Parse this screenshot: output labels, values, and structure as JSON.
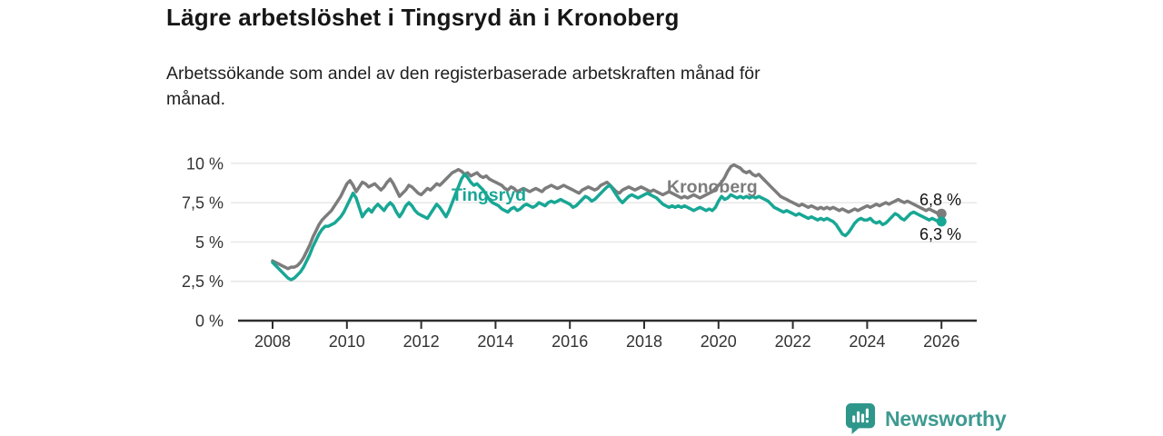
{
  "header": {
    "title": "Lägre arbetslöshet i Tingsryd än i Kronoberg",
    "subtitle": "Arbetssökande som andel av den registerbaserade arbetskraften månad för månad."
  },
  "chart_data": {
    "type": "line",
    "title": "Lägre arbetslöshet i Tingsryd än i Kronoberg",
    "x_unit": "month",
    "x_start": "2008-01",
    "x_end": "2026-01",
    "ylim": [
      0,
      10.6
    ],
    "grid": "horizontal",
    "yticks": [
      {
        "value": 0,
        "label": "0 %"
      },
      {
        "value": 2.5,
        "label": "2,5 %"
      },
      {
        "value": 5,
        "label": "5 %"
      },
      {
        "value": 7.5,
        "label": "7,5 %"
      },
      {
        "value": 10,
        "label": "10 %"
      }
    ],
    "xticks": [
      {
        "year": 2008,
        "label": "2008"
      },
      {
        "year": 2010,
        "label": "2010"
      },
      {
        "year": 2012,
        "label": "2012"
      },
      {
        "year": 2014,
        "label": "2014"
      },
      {
        "year": 2016,
        "label": "2016"
      },
      {
        "year": 2018,
        "label": "2018"
      },
      {
        "year": 2020,
        "label": "2020"
      },
      {
        "year": 2022,
        "label": "2022"
      },
      {
        "year": 2024,
        "label": "2024"
      },
      {
        "year": 2026,
        "label": "2026"
      }
    ],
    "series": [
      {
        "name": "Kronoberg",
        "color": "#7c7c7c",
        "end_value": 6.8,
        "end_label": "6,8 %",
        "values": [
          3.8,
          3.7,
          3.6,
          3.5,
          3.4,
          3.3,
          3.4,
          3.4,
          3.5,
          3.7,
          4.0,
          4.4,
          4.8,
          5.3,
          5.7,
          6.1,
          6.4,
          6.6,
          6.8,
          7.0,
          7.3,
          7.6,
          7.9,
          8.3,
          8.7,
          8.9,
          8.6,
          8.2,
          8.5,
          8.8,
          8.7,
          8.5,
          8.6,
          8.7,
          8.5,
          8.3,
          8.5,
          8.8,
          9.0,
          8.7,
          8.3,
          7.9,
          8.1,
          8.3,
          8.6,
          8.5,
          8.3,
          8.1,
          8.0,
          8.2,
          8.4,
          8.3,
          8.5,
          8.7,
          8.6,
          8.8,
          9.0,
          9.2,
          9.4,
          9.5,
          9.6,
          9.5,
          9.3,
          9.4,
          9.2,
          9.3,
          9.4,
          9.2,
          9.1,
          9.2,
          9.0,
          8.9,
          8.8,
          8.7,
          8.6,
          8.4,
          8.3,
          8.5,
          8.4,
          8.2,
          8.3,
          8.4,
          8.3,
          8.2,
          8.3,
          8.4,
          8.3,
          8.2,
          8.4,
          8.5,
          8.6,
          8.5,
          8.4,
          8.5,
          8.6,
          8.5,
          8.4,
          8.3,
          8.2,
          8.1,
          8.3,
          8.4,
          8.5,
          8.4,
          8.3,
          8.4,
          8.6,
          8.7,
          8.8,
          8.6,
          8.4,
          8.2,
          8.1,
          8.3,
          8.4,
          8.5,
          8.4,
          8.3,
          8.4,
          8.5,
          8.4,
          8.3,
          8.2,
          8.3,
          8.2,
          8.1,
          8.0,
          8.1,
          8.2,
          8.1,
          8.0,
          7.9,
          7.8,
          7.9,
          7.8,
          7.9,
          8.0,
          7.9,
          7.8,
          7.9,
          8.0,
          8.1,
          8.2,
          8.4,
          8.6,
          8.8,
          9.1,
          9.5,
          9.8,
          9.9,
          9.8,
          9.7,
          9.5,
          9.4,
          9.5,
          9.3,
          9.2,
          9.3,
          9.1,
          8.9,
          8.7,
          8.5,
          8.3,
          8.1,
          7.9,
          7.8,
          7.7,
          7.6,
          7.5,
          7.4,
          7.3,
          7.4,
          7.3,
          7.2,
          7.3,
          7.2,
          7.1,
          7.2,
          7.1,
          7.2,
          7.1,
          7.2,
          7.1,
          7.0,
          7.1,
          7.0,
          6.9,
          7.0,
          7.1,
          7.0,
          7.1,
          7.2,
          7.3,
          7.2,
          7.3,
          7.4,
          7.3,
          7.4,
          7.5,
          7.4,
          7.5,
          7.6,
          7.7,
          7.6,
          7.5,
          7.6,
          7.5,
          7.4,
          7.3,
          7.2,
          7.1,
          7.0,
          7.1,
          7.0,
          6.9,
          6.8,
          6.8
        ]
      },
      {
        "name": "Tingsryd",
        "color": "#18a795",
        "end_value": 6.3,
        "end_label": "6,3 %",
        "values": [
          3.7,
          3.5,
          3.3,
          3.1,
          2.9,
          2.7,
          2.6,
          2.7,
          2.9,
          3.1,
          3.4,
          3.8,
          4.2,
          4.7,
          5.1,
          5.5,
          5.8,
          6.0,
          6.0,
          6.1,
          6.2,
          6.4,
          6.6,
          6.9,
          7.3,
          7.7,
          8.1,
          7.8,
          7.2,
          6.6,
          6.9,
          7.1,
          6.9,
          7.2,
          7.4,
          7.2,
          7.0,
          7.3,
          7.5,
          7.3,
          6.9,
          6.6,
          6.9,
          7.3,
          7.5,
          7.3,
          7.0,
          6.8,
          6.7,
          6.6,
          6.5,
          6.8,
          7.1,
          7.4,
          7.2,
          6.9,
          6.6,
          7.0,
          7.5,
          8.0,
          8.5,
          9.0,
          9.3,
          9.1,
          8.8,
          8.6,
          8.7,
          8.5,
          8.3,
          8.0,
          7.7,
          7.5,
          7.4,
          7.3,
          7.1,
          7.0,
          6.9,
          7.1,
          7.2,
          7.0,
          7.1,
          7.3,
          7.4,
          7.3,
          7.2,
          7.3,
          7.5,
          7.4,
          7.3,
          7.5,
          7.6,
          7.5,
          7.6,
          7.7,
          7.6,
          7.5,
          7.4,
          7.2,
          7.3,
          7.5,
          7.7,
          7.9,
          7.8,
          7.6,
          7.7,
          7.9,
          8.1,
          8.3,
          8.5,
          8.6,
          8.3,
          8.0,
          7.7,
          7.5,
          7.7,
          7.9,
          8.0,
          7.9,
          7.8,
          7.9,
          8.0,
          8.1,
          8.0,
          7.9,
          7.8,
          7.6,
          7.4,
          7.3,
          7.2,
          7.3,
          7.2,
          7.3,
          7.2,
          7.3,
          7.2,
          7.1,
          7.0,
          7.1,
          7.2,
          7.1,
          7.0,
          7.1,
          7.0,
          7.2,
          7.6,
          7.9,
          7.7,
          7.8,
          8.0,
          7.9,
          7.8,
          7.9,
          7.8,
          7.9,
          7.8,
          7.9,
          7.8,
          7.9,
          7.8,
          7.7,
          7.6,
          7.4,
          7.2,
          7.1,
          7.0,
          6.9,
          7.0,
          6.9,
          6.8,
          6.7,
          6.8,
          6.7,
          6.6,
          6.5,
          6.6,
          6.5,
          6.4,
          6.5,
          6.4,
          6.5,
          6.4,
          6.3,
          6.1,
          5.8,
          5.5,
          5.4,
          5.6,
          5.9,
          6.2,
          6.4,
          6.5,
          6.4,
          6.4,
          6.5,
          6.3,
          6.2,
          6.3,
          6.1,
          6.2,
          6.4,
          6.6,
          6.8,
          6.7,
          6.5,
          6.4,
          6.6,
          6.8,
          6.9,
          6.8,
          6.7,
          6.6,
          6.5,
          6.4,
          6.5,
          6.4,
          6.3,
          6.3
        ]
      }
    ]
  },
  "footer": {
    "brand": "Newsworthy",
    "brand_color": "#3e9a91",
    "icon_color": "#2f968b"
  }
}
